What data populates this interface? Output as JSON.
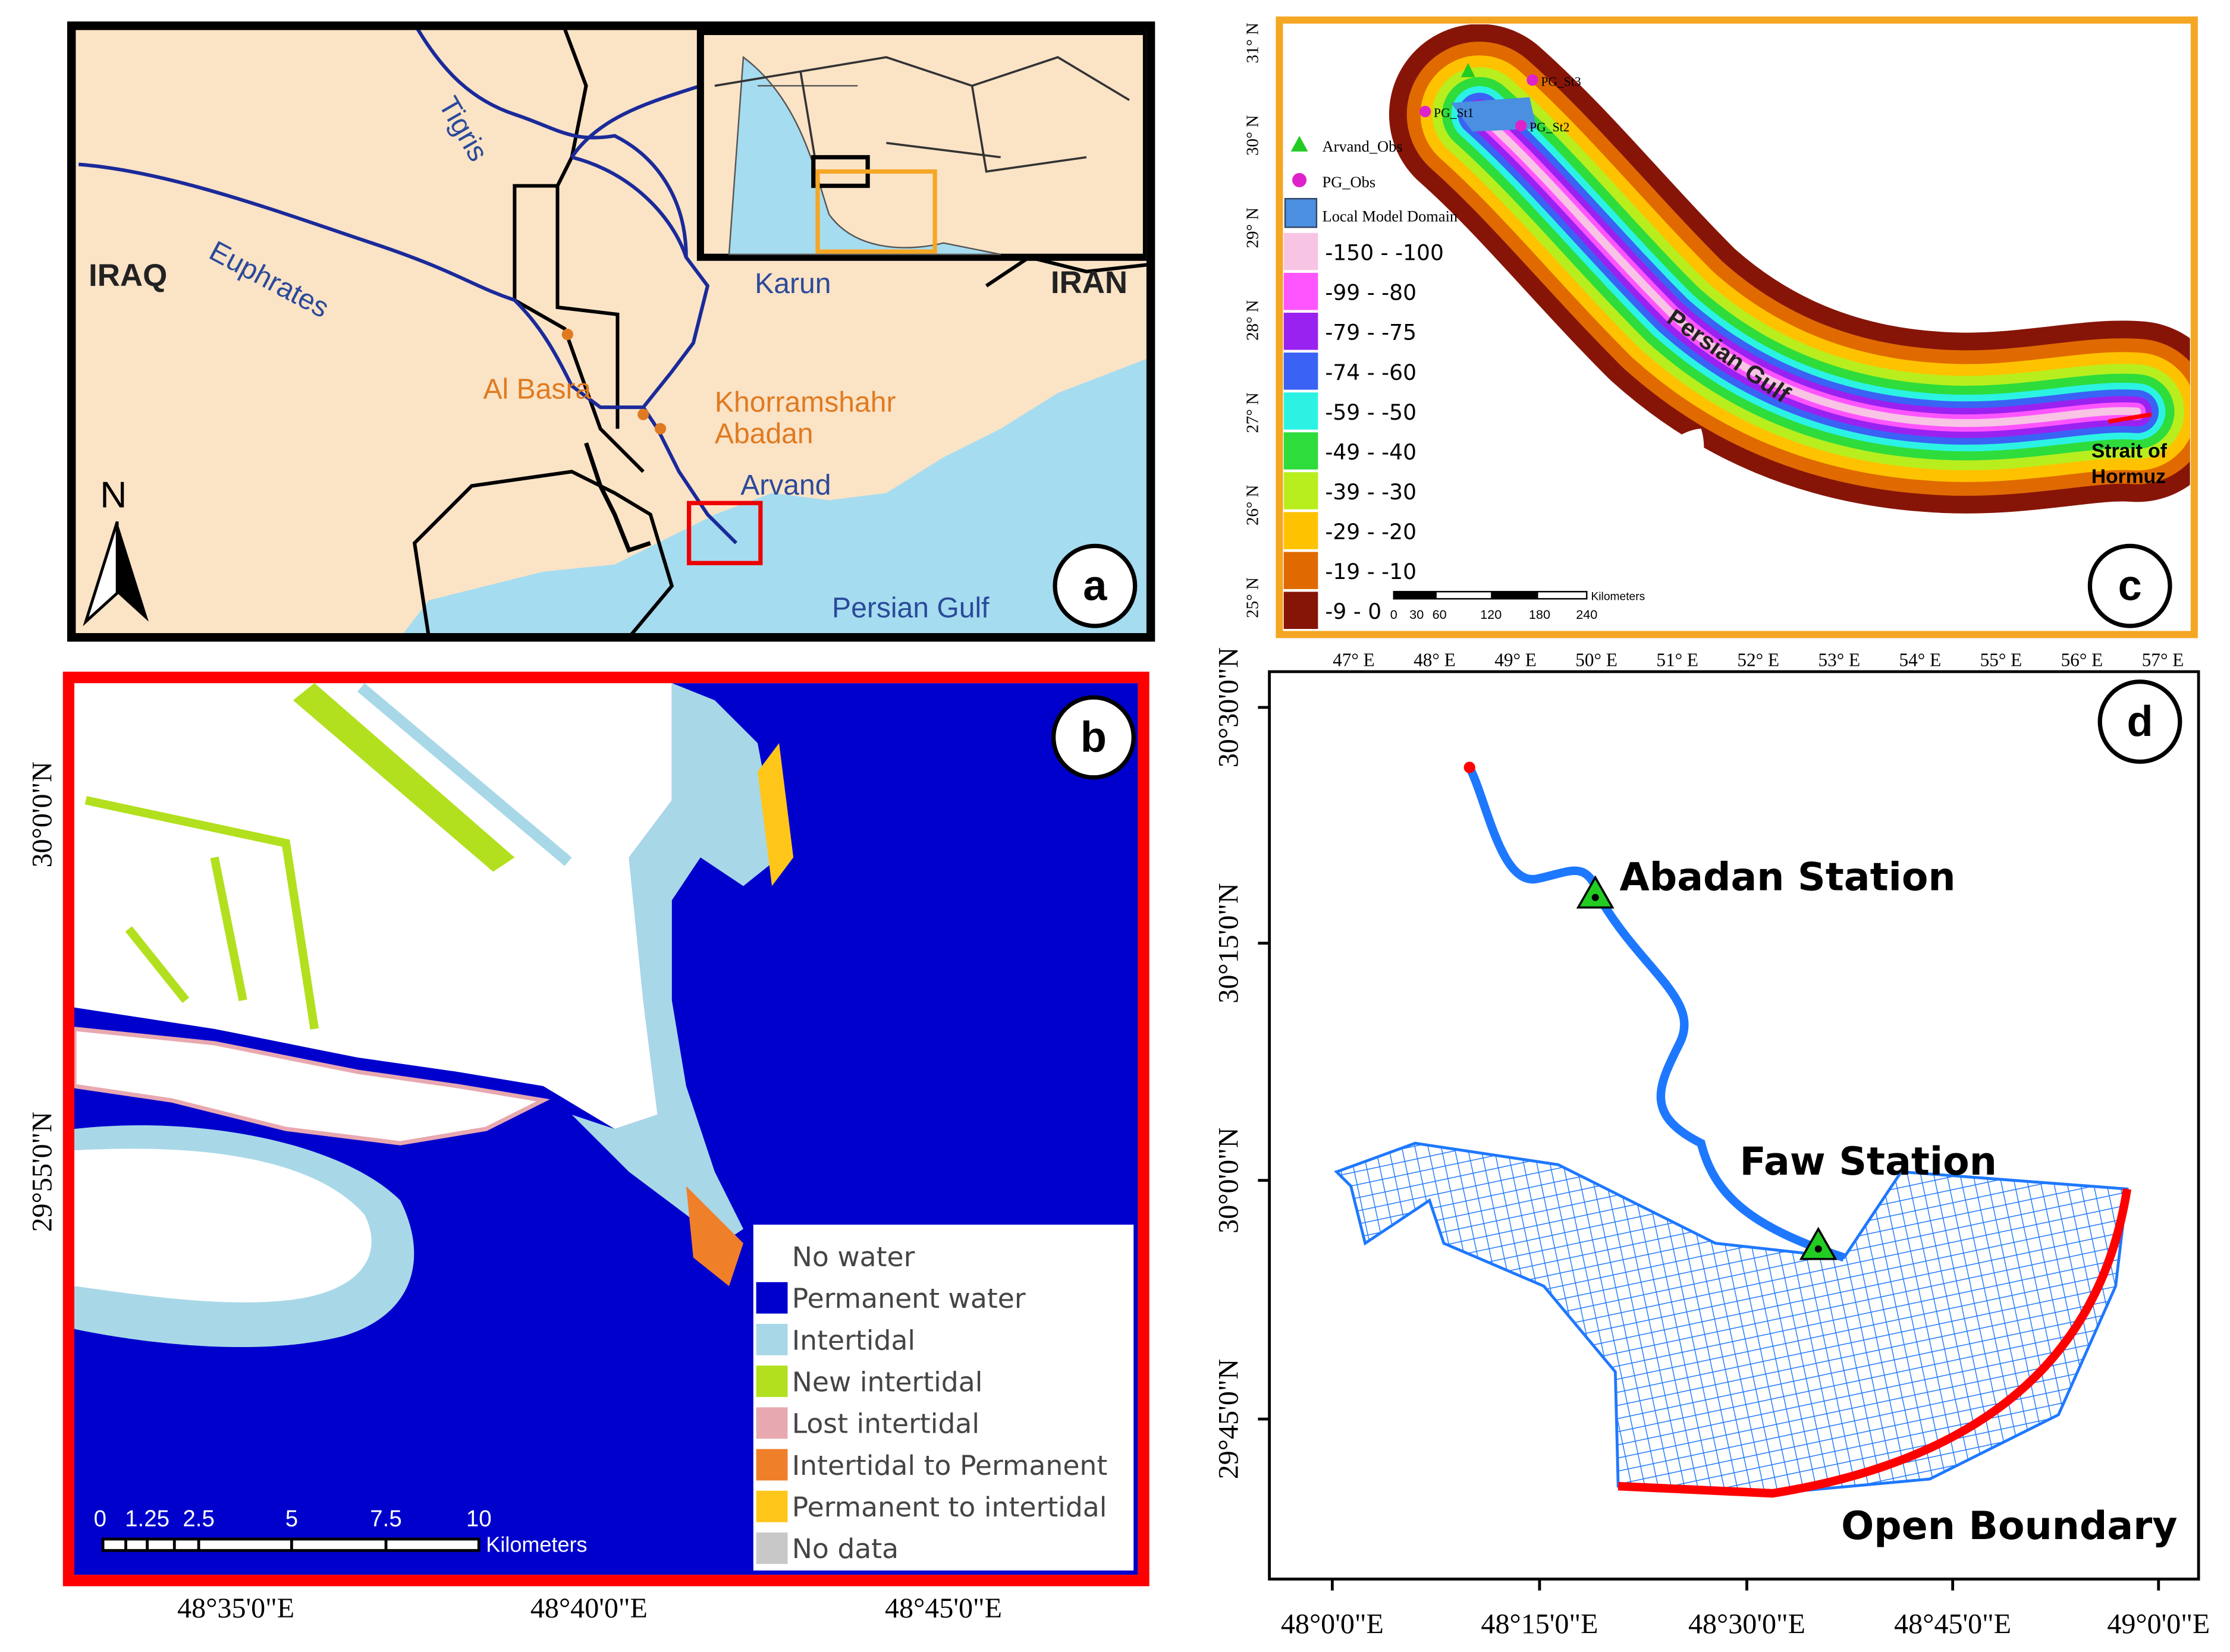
{
  "panel_a": {
    "label": "a",
    "north": "N",
    "labels": {
      "tigris": "Tigris",
      "euphrates": "Euphrates",
      "iraq": "IRAQ",
      "iran": "IRAN",
      "karun": "Karun",
      "al_basra": "Al Basra",
      "khorramshahr": "Khorramshahr",
      "abadan": "Abadan",
      "arvand": "Arvand",
      "persian_gulf": "Persian Gulf"
    }
  },
  "panel_b": {
    "label": "b",
    "y_ticks": [
      "30°0'0\"N",
      "29°55'0\"N"
    ],
    "x_ticks": [
      "48°35'0\"E",
      "48°40'0\"E",
      "48°45'0\"E"
    ],
    "legend": [
      {
        "label": "No water",
        "color": "#ffffff"
      },
      {
        "label": "Permanent water",
        "color": "#0000cd"
      },
      {
        "label": "Intertidal",
        "color": "#a8d8e8"
      },
      {
        "label": "New intertidal",
        "color": "#b2e01e"
      },
      {
        "label": "Lost intertidal",
        "color": "#e8a8b0"
      },
      {
        "label": "Intertidal to Permanent",
        "color": "#f07f2a"
      },
      {
        "label": "Permanent to intertidal",
        "color": "#ffc61a"
      },
      {
        "label": "No data",
        "color": "#c8c8c8"
      }
    ],
    "scale_bar": {
      "ticks": [
        "0",
        "1.25",
        "2.5",
        "5",
        "7.5",
        "10"
      ],
      "unit": "Kilometers"
    }
  },
  "panel_c": {
    "label": "c",
    "y_ticks": [
      "31° N",
      "30° N",
      "29° N",
      "28° N",
      "27° N",
      "26° N",
      "25° N"
    ],
    "x_ticks": [
      "47° E",
      "48° E",
      "49° E",
      "50° E",
      "51° E",
      "52° E",
      "53° E",
      "54° E",
      "55° E",
      "56° E",
      "57° E"
    ],
    "markers": [
      {
        "label": "Arvand_Obs",
        "color": "#22cc22"
      },
      {
        "label": "PG_Obs",
        "color": "#dd22cc"
      },
      {
        "label": "Local Model Domain",
        "color": "#4a8fe0"
      }
    ],
    "depth": [
      {
        "label": "-150 - -100",
        "color": "#f8c4e4"
      },
      {
        "label": "-99 - -80",
        "color": "#ff55ff"
      },
      {
        "label": "-79 - -75",
        "color": "#9a22f0"
      },
      {
        "label": "-74 - -60",
        "color": "#3a62f5"
      },
      {
        "label": "-59 - -50",
        "color": "#2cf2e4"
      },
      {
        "label": "-49 - -40",
        "color": "#2edc3c"
      },
      {
        "label": "-39 - -30",
        "color": "#b8ee1e"
      },
      {
        "label": "-29 - -20",
        "color": "#ffc200"
      },
      {
        "label": "-19 - -10",
        "color": "#e06a00"
      },
      {
        "label": "-9 - 0",
        "color": "#861508"
      }
    ],
    "stations": [
      "PG_St3",
      "PG_St1",
      "PG_St2"
    ],
    "gulf_label": "Persian Gulf",
    "strait_label": [
      "Strait of",
      "Hormuz"
    ],
    "scale_bar": {
      "ticks": [
        "0",
        "30",
        "60",
        "120",
        "180",
        "240"
      ],
      "unit": "Kilometers"
    }
  },
  "panel_d": {
    "label": "d",
    "y_ticks": [
      "30°30'0\"N",
      "30°15'0\"N",
      "30°0'0\"N",
      "29°45'0\"N"
    ],
    "x_ticks": [
      "48°0'0\"E",
      "48°15'0\"E",
      "48°30'0\"E",
      "48°45'0\"E",
      "49°0'0\"E"
    ],
    "labels": {
      "abadan": "Abadan Station",
      "faw": "Faw Station",
      "open_boundary": "Open Boundary"
    }
  }
}
